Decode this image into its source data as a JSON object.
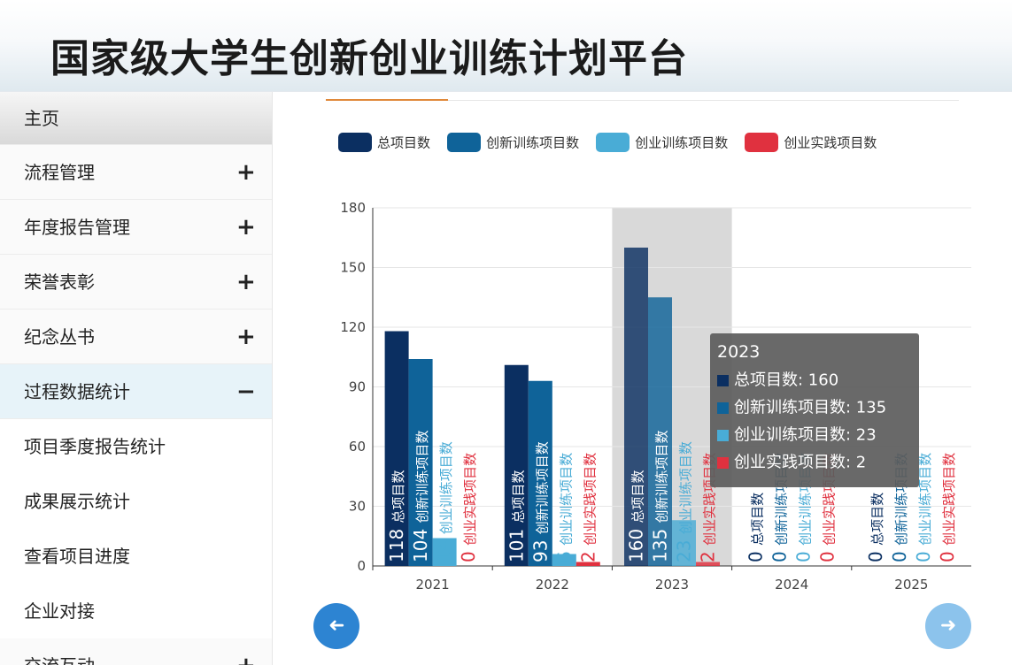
{
  "header": {
    "title": "国家级大学生创新创业训练计划平台"
  },
  "sidebar": {
    "items": [
      {
        "label": "主页",
        "toggle": ""
      },
      {
        "label": "流程管理",
        "toggle": "+"
      },
      {
        "label": "年度报告管理",
        "toggle": "+"
      },
      {
        "label": "荣誉表彰",
        "toggle": "+"
      },
      {
        "label": "纪念丛书",
        "toggle": "+"
      },
      {
        "label": "过程数据统计",
        "toggle": "−"
      },
      {
        "label": "项目季度报告统计",
        "toggle": ""
      },
      {
        "label": "成果展示统计",
        "toggle": ""
      },
      {
        "label": "查看项目进度",
        "toggle": ""
      },
      {
        "label": "企业对接",
        "toggle": ""
      },
      {
        "label": "交流互动",
        "toggle": "+"
      }
    ]
  },
  "colors": {
    "series": [
      "#0b2f61",
      "#0f6399",
      "#49acd6",
      "#e0313f"
    ],
    "highlight_band": "#d9d9d9",
    "grid": "#e6e6e6"
  },
  "chart_data": {
    "type": "bar",
    "categories": [
      "2021",
      "2022",
      "2023",
      "2024",
      "2025"
    ],
    "series": [
      {
        "name": "总项目数",
        "values": [
          118,
          101,
          160,
          0,
          0
        ]
      },
      {
        "name": "创新训练项目数",
        "values": [
          104,
          93,
          135,
          0,
          0
        ]
      },
      {
        "name": "创业训练项目数",
        "values": [
          14,
          6,
          23,
          0,
          0
        ]
      },
      {
        "name": "创业实践项目数",
        "values": [
          0,
          2,
          2,
          0,
          0
        ]
      }
    ],
    "ylim": [
      0,
      180
    ],
    "yticks": [
      0,
      30,
      60,
      90,
      120,
      150,
      180
    ],
    "grid": true,
    "legend": "top",
    "highlighted_category": "2023"
  },
  "tooltip": {
    "title": "2023",
    "rows": [
      "总项目数: 160",
      "创新训练项目数: 135",
      "创业训练项目数: 23",
      "创业实践项目数: 2"
    ]
  },
  "pager": {
    "prev_icon": "arrow-left-icon",
    "next_icon": "arrow-right-icon"
  }
}
